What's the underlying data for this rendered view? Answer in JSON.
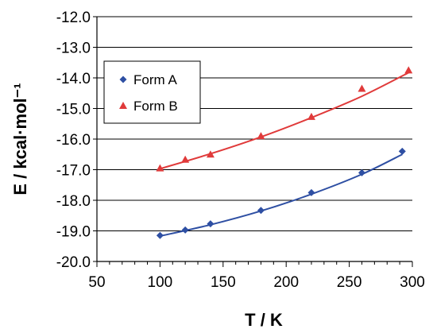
{
  "chart_data": {
    "type": "scatter",
    "xlabel": "T / K",
    "ylabel": "E / kcal·mol⁻¹",
    "xlim": [
      50,
      300
    ],
    "ylim": [
      -20.0,
      -12.0
    ],
    "x_ticks": [
      "50",
      "100",
      "150",
      "200",
      "250",
      "300"
    ],
    "y_ticks": [
      "-20.0",
      "-19.0",
      "-18.0",
      "-17.0",
      "-16.0",
      "-15.0",
      "-14.0",
      "-13.0",
      "-12.0"
    ],
    "grid": "horizontal",
    "legend_position": "top-left",
    "series": [
      {
        "name": "Form A",
        "color": "#2e4fa3",
        "marker": "diamond",
        "points": [
          {
            "x": 100,
            "y": -19.15
          },
          {
            "x": 120,
            "y": -18.97
          },
          {
            "x": 140,
            "y": -18.77
          },
          {
            "x": 180,
            "y": -18.33
          },
          {
            "x": 220,
            "y": -17.75
          },
          {
            "x": 260,
            "y": -17.1
          },
          {
            "x": 292,
            "y": -16.4
          }
        ],
        "fit": [
          {
            "x": 100,
            "y": -19.17
          },
          {
            "x": 140,
            "y": -18.8
          },
          {
            "x": 180,
            "y": -18.35
          },
          {
            "x": 220,
            "y": -17.8
          },
          {
            "x": 260,
            "y": -17.15
          },
          {
            "x": 292,
            "y": -16.5
          }
        ]
      },
      {
        "name": "Form B",
        "color": "#e03a3a",
        "marker": "triangle",
        "points": [
          {
            "x": 100,
            "y": -16.95
          },
          {
            "x": 120,
            "y": -16.67
          },
          {
            "x": 140,
            "y": -16.5
          },
          {
            "x": 180,
            "y": -15.9
          },
          {
            "x": 220,
            "y": -15.27
          },
          {
            "x": 260,
            "y": -14.35
          },
          {
            "x": 297,
            "y": -13.75
          }
        ],
        "fit": [
          {
            "x": 100,
            "y": -16.97
          },
          {
            "x": 140,
            "y": -16.48
          },
          {
            "x": 180,
            "y": -15.93
          },
          {
            "x": 220,
            "y": -15.3
          },
          {
            "x": 260,
            "y": -14.6
          },
          {
            "x": 297,
            "y": -13.83
          }
        ]
      }
    ]
  }
}
